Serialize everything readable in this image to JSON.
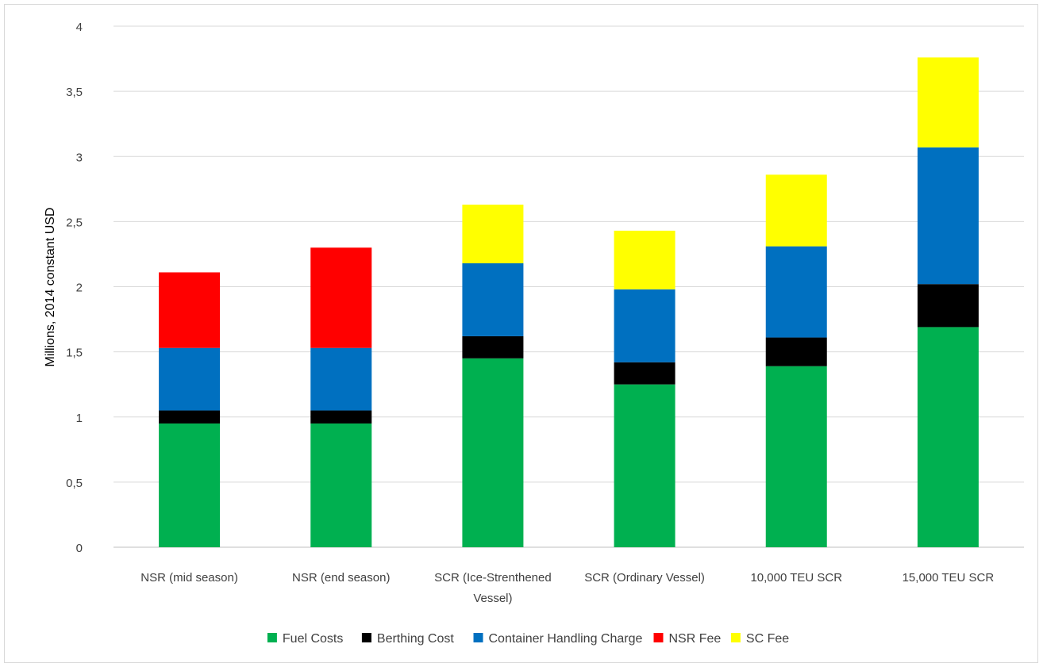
{
  "chart_data": {
    "type": "bar",
    "stacked": true,
    "ylabel": "Millions, 2014 constant USD",
    "xlabel": "",
    "ylim": [
      0,
      4
    ],
    "yticks": [
      "0",
      "0,5",
      "1",
      "1,5",
      "2",
      "2,5",
      "3",
      "3,5",
      "4"
    ],
    "grid": true,
    "legend_position": "bottom",
    "categories": [
      [
        "NSR (mid season)"
      ],
      [
        "NSR (end season)"
      ],
      [
        "SCR (Ice-Strenthened",
        "Vessel)"
      ],
      [
        "SCR (Ordinary Vessel)"
      ],
      [
        "10,000 TEU SCR"
      ],
      [
        "15,000 TEU SCR"
      ]
    ],
    "series": [
      {
        "name": "Fuel Costs",
        "color": "#00b050",
        "values": [
          0.95,
          0.95,
          1.45,
          1.25,
          1.39,
          1.69
        ]
      },
      {
        "name": "Berthing Cost",
        "color": "#000000",
        "values": [
          0.1,
          0.1,
          0.17,
          0.17,
          0.22,
          0.33
        ]
      },
      {
        "name": "Container Handling Charge",
        "color": "#0070c0",
        "values": [
          0.48,
          0.48,
          0.56,
          0.56,
          0.7,
          1.05
        ]
      },
      {
        "name": "NSR Fee",
        "color": "#ff0000",
        "values": [
          0.58,
          0.77,
          0,
          0,
          0,
          0
        ]
      },
      {
        "name": "SC Fee",
        "color": "#ffff00",
        "values": [
          0,
          0,
          0.45,
          0.45,
          0.55,
          0.69
        ]
      }
    ]
  }
}
